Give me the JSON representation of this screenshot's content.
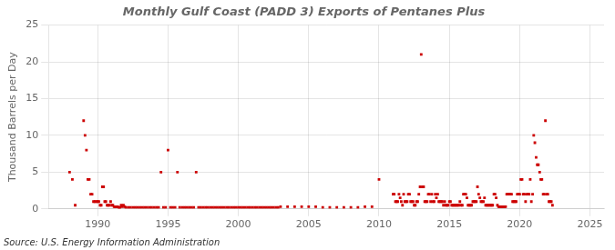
{
  "chart_data": {
    "type": "scatter",
    "title": "Monthly Gulf Coast (PADD 3) Exports of Pentanes Plus",
    "ylabel": "Thousand Barrels per Day",
    "annotations": [
      "Source: U.S. Energy Information Administration"
    ],
    "color": "#cc0000",
    "marker": "square",
    "grid": true,
    "xlim": [
      1986.5,
      2026
    ],
    "ylim": [
      0,
      25
    ],
    "xticks": [
      1990,
      1995,
      2000,
      2005,
      2010,
      2015,
      2020,
      2025
    ],
    "yticks": [
      0,
      5,
      10,
      15,
      20,
      25
    ],
    "x": [
      1988.0,
      1988.2,
      1988.4,
      1989.0,
      1989.1,
      1989.2,
      1989.3,
      1989.4,
      1989.5,
      1989.6,
      1989.7,
      1989.8,
      1989.9,
      1990.0,
      1990.08,
      1990.17,
      1990.25,
      1990.33,
      1990.42,
      1990.5,
      1990.58,
      1990.67,
      1990.75,
      1990.83,
      1990.92,
      1991.0,
      1991.08,
      1991.17,
      1991.25,
      1991.33,
      1991.42,
      1991.5,
      1991.58,
      1991.67,
      1991.75,
      1991.83,
      1991.92,
      1992.0,
      1992.17,
      1992.33,
      1992.5,
      1992.67,
      1992.83,
      1993.0,
      1993.17,
      1993.33,
      1993.5,
      1993.67,
      1993.83,
      1994.0,
      1994.17,
      1994.33,
      1994.67,
      1994.83,
      1994.5,
      1995.0,
      1995.17,
      1995.33,
      1995.5,
      1995.67,
      1995.83,
      1996.0,
      1996.17,
      1996.33,
      1996.5,
      1996.67,
      1996.83,
      1997.0,
      1997.17,
      1997.33,
      1997.5,
      1997.67,
      1997.83,
      1998.0,
      1998.17,
      1998.33,
      1998.5,
      1998.67,
      1998.83,
      1999.0,
      1999.17,
      1999.33,
      1999.5,
      1999.67,
      1999.83,
      2000.0,
      2000.17,
      2000.33,
      2000.5,
      2000.67,
      2000.83,
      2001.0,
      2001.17,
      2001.33,
      2001.5,
      2001.67,
      2001.83,
      2002.0,
      2002.17,
      2002.33,
      2002.5,
      2002.67,
      2002.83,
      2003.0,
      2003.5,
      2004.0,
      2004.5,
      2005.0,
      2005.5,
      2006.0,
      2006.5,
      2007.0,
      2007.5,
      2008.0,
      2008.5,
      2009.0,
      2009.5,
      2010.0,
      2011.0,
      2011.08,
      2011.17,
      2011.25,
      2011.33,
      2011.42,
      2011.5,
      2011.58,
      2011.67,
      2011.75,
      2011.83,
      2011.92,
      2012.0,
      2012.08,
      2012.17,
      2012.25,
      2012.33,
      2012.42,
      2012.5,
      2012.58,
      2012.67,
      2012.75,
      2012.83,
      2012.92,
      2013.0,
      2013.08,
      2013.17,
      2013.25,
      2013.33,
      2013.42,
      2013.5,
      2013.58,
      2013.67,
      2013.75,
      2013.83,
      2013.92,
      2014.0,
      2014.08,
      2014.17,
      2014.25,
      2014.33,
      2014.42,
      2014.5,
      2014.58,
      2014.67,
      2014.75,
      2014.83,
      2014.92,
      2015.0,
      2015.08,
      2015.17,
      2015.25,
      2015.33,
      2015.42,
      2015.5,
      2015.58,
      2015.67,
      2015.75,
      2015.83,
      2015.92,
      2016.0,
      2016.08,
      2016.17,
      2016.25,
      2016.33,
      2016.42,
      2016.5,
      2016.58,
      2016.67,
      2016.75,
      2016.83,
      2016.92,
      2017.0,
      2017.08,
      2017.17,
      2017.25,
      2017.33,
      2017.42,
      2017.5,
      2017.58,
      2017.67,
      2017.75,
      2017.83,
      2017.92,
      2018.0,
      2018.08,
      2018.17,
      2018.25,
      2018.33,
      2018.42,
      2018.5,
      2018.58,
      2018.67,
      2018.75,
      2018.83,
      2018.92,
      2019.0,
      2019.08,
      2019.17,
      2019.25,
      2019.33,
      2019.42,
      2019.5,
      2019.58,
      2019.67,
      2019.75,
      2019.83,
      2019.92,
      2020.0,
      2020.08,
      2020.17,
      2020.25,
      2020.33,
      2020.42,
      2020.5,
      2020.58,
      2020.67,
      2020.75,
      2020.83,
      2020.92,
      2021.0,
      2021.08,
      2021.17,
      2021.25,
      2021.33,
      2021.42,
      2021.5,
      2021.58,
      2021.67,
      2021.75,
      2021.83,
      2021.92,
      2022.0,
      2022.08,
      2022.17,
      2022.25,
      2022.33
    ],
    "values": [
      5.0,
      4.0,
      0.5,
      12.0,
      10.0,
      8.0,
      4.0,
      4.0,
      2.0,
      2.0,
      1.0,
      1.0,
      1.0,
      1.0,
      1.0,
      0.5,
      0.5,
      3.0,
      3.0,
      1.0,
      1.0,
      0.5,
      0.5,
      0.5,
      1.0,
      0.5,
      0.5,
      0.3,
      0.3,
      0.3,
      0.3,
      0.2,
      0.2,
      0.5,
      0.3,
      0.5,
      0.3,
      0.2,
      0.2,
      0.2,
      0.2,
      0.2,
      0.2,
      0.2,
      0.2,
      0.2,
      0.2,
      0.2,
      0.2,
      0.2,
      0.2,
      0.2,
      0.2,
      0.2,
      5.0,
      8.0,
      0.2,
      0.2,
      0.2,
      5.0,
      0.2,
      0.2,
      0.2,
      0.2,
      0.2,
      0.2,
      0.2,
      5.0,
      0.2,
      0.2,
      0.2,
      0.2,
      0.2,
      0.2,
      0.2,
      0.2,
      0.2,
      0.2,
      0.2,
      0.2,
      0.2,
      0.2,
      0.2,
      0.2,
      0.2,
      0.2,
      0.2,
      0.2,
      0.2,
      0.2,
      0.2,
      0.2,
      0.2,
      0.2,
      0.2,
      0.2,
      0.2,
      0.2,
      0.2,
      0.2,
      0.2,
      0.2,
      0.2,
      0.3,
      0.3,
      0.3,
      0.3,
      0.3,
      0.3,
      0.2,
      0.2,
      0.2,
      0.2,
      0.2,
      0.2,
      0.3,
      0.3,
      4.0,
      2.0,
      2.0,
      1.0,
      1.0,
      1.0,
      2.0,
      1.5,
      1.0,
      0.5,
      2.0,
      1.0,
      1.0,
      1.0,
      2.0,
      2.0,
      1.0,
      1.0,
      1.0,
      0.5,
      0.5,
      1.0,
      1.0,
      2.0,
      3.0,
      21.0,
      3.0,
      3.0,
      1.0,
      1.0,
      1.0,
      2.0,
      2.0,
      1.0,
      2.0,
      1.0,
      1.0,
      2.0,
      1.5,
      2.0,
      1.0,
      1.0,
      1.0,
      1.0,
      0.5,
      1.0,
      0.5,
      0.5,
      0.5,
      1.0,
      1.0,
      0.5,
      0.5,
      0.5,
      0.5,
      0.5,
      0.5,
      0.5,
      1.0,
      0.5,
      0.5,
      2.0,
      2.0,
      2.0,
      1.5,
      0.5,
      0.5,
      0.5,
      0.5,
      1.0,
      1.0,
      1.0,
      1.0,
      3.0,
      2.0,
      1.5,
      1.0,
      1.0,
      1.0,
      1.5,
      0.5,
      0.5,
      0.5,
      0.5,
      0.5,
      0.5,
      0.5,
      2.0,
      2.0,
      1.5,
      0.5,
      0.3,
      0.3,
      0.3,
      0.3,
      0.3,
      0.3,
      0.3,
      2.0,
      2.0,
      2.0,
      2.0,
      2.0,
      1.0,
      1.0,
      1.0,
      1.0,
      2.0,
      2.0,
      2.0,
      4.0,
      4.0,
      2.0,
      2.0,
      1.0,
      2.0,
      2.0,
      2.0,
      4.0,
      1.0,
      2.0,
      10.0,
      9.0,
      7.0,
      6.0,
      6.0,
      5.0,
      4.0,
      4.0,
      2.0,
      2.0,
      12.0,
      2.0,
      2.0,
      1.0,
      1.0,
      1.0,
      0.5
    ]
  }
}
